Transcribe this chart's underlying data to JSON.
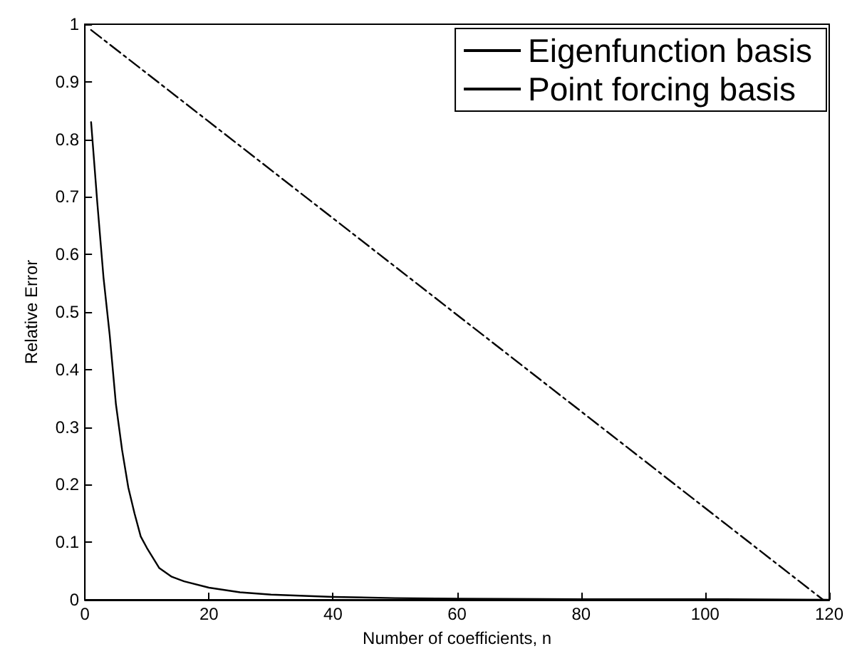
{
  "chart_data": {
    "type": "line",
    "xlabel": "Number of coefficients, n",
    "ylabel": "Relative Error",
    "xlim": [
      0,
      120
    ],
    "ylim": [
      0,
      1
    ],
    "xticks": [
      0,
      20,
      40,
      60,
      80,
      100,
      120
    ],
    "yticks": [
      0,
      0.1,
      0.2,
      0.3,
      0.4,
      0.5,
      0.6,
      0.7,
      0.8,
      0.9,
      1
    ],
    "grid": false,
    "legend": "top right",
    "marker": "none",
    "series": [
      {
        "name": "Eigenfunction basis",
        "color": "#000000",
        "line_style": "solid",
        "x": [
          1,
          2,
          3,
          4,
          5,
          6,
          7,
          8,
          9,
          10,
          12,
          14,
          16,
          20,
          25,
          30,
          40,
          50,
          60,
          80,
          100,
          120
        ],
        "values": [
          0.83,
          0.69,
          0.56,
          0.46,
          0.34,
          0.26,
          0.195,
          0.15,
          0.11,
          0.09,
          0.055,
          0.04,
          0.032,
          0.021,
          0.013,
          0.009,
          0.005,
          0.003,
          0.002,
          0.001,
          0.001,
          0
        ]
      },
      {
        "name": "Point forcing basis",
        "color": "#000000",
        "line_style": "dashed",
        "x": [
          1,
          119
        ],
        "values": [
          0.99,
          0.0
        ]
      }
    ]
  }
}
